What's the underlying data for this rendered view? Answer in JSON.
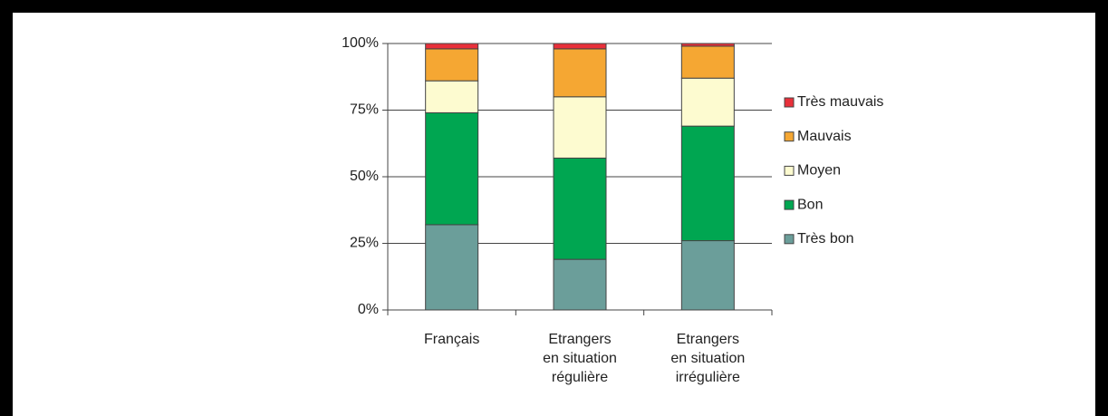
{
  "chart_data": {
    "type": "stacked_bar",
    "categories": [
      "Français",
      "Etrangers\nen situation\nrégulière",
      "Etrangers\nen situation\nirrégulière"
    ],
    "series": [
      {
        "name": "Très bon",
        "color": "#6b9e9a",
        "values": [
          32,
          19,
          26
        ]
      },
      {
        "name": "Bon",
        "color": "#00a651",
        "values": [
          42,
          38,
          43
        ]
      },
      {
        "name": "Moyen",
        "color": "#fdfbd0",
        "values": [
          12,
          23,
          18
        ]
      },
      {
        "name": "Mauvais",
        "color": "#f5a733",
        "values": [
          12,
          18,
          12
        ]
      },
      {
        "name": "Très mauvais",
        "color": "#e8303a",
        "values": [
          2,
          2,
          1
        ]
      }
    ],
    "ylim": [
      0,
      100
    ],
    "yticks": [
      {
        "value": 0,
        "label": "0%"
      },
      {
        "value": 25,
        "label": "25%"
      },
      {
        "value": 50,
        "label": "50%"
      },
      {
        "value": 75,
        "label": "75%"
      },
      {
        "value": 100,
        "label": "100%"
      }
    ],
    "grid": true,
    "legend": "right"
  }
}
